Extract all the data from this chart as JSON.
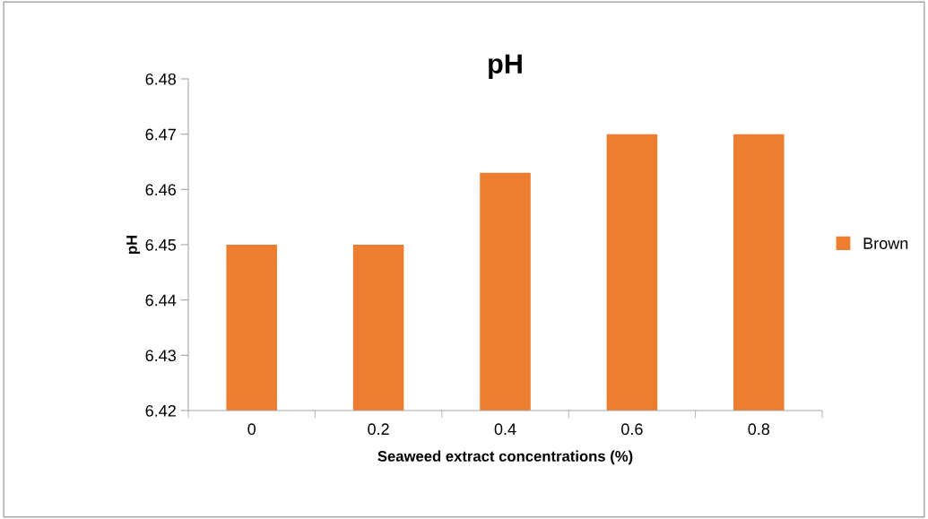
{
  "chart_data": {
    "type": "bar",
    "title": "pH",
    "xlabel": "Seaweed extract concentrations (%)",
    "ylabel": "pH",
    "categories": [
      "0",
      "0.2",
      "0.4",
      "0.6",
      "0.8"
    ],
    "series": [
      {
        "name": "Brown",
        "color": "#ed7d31",
        "values": [
          6.45,
          6.45,
          6.463,
          6.47,
          6.47
        ]
      }
    ],
    "ylim": [
      6.42,
      6.48
    ],
    "yticks": [
      6.42,
      6.43,
      6.44,
      6.45,
      6.46,
      6.47,
      6.48
    ],
    "grid": false,
    "legend": "right"
  }
}
